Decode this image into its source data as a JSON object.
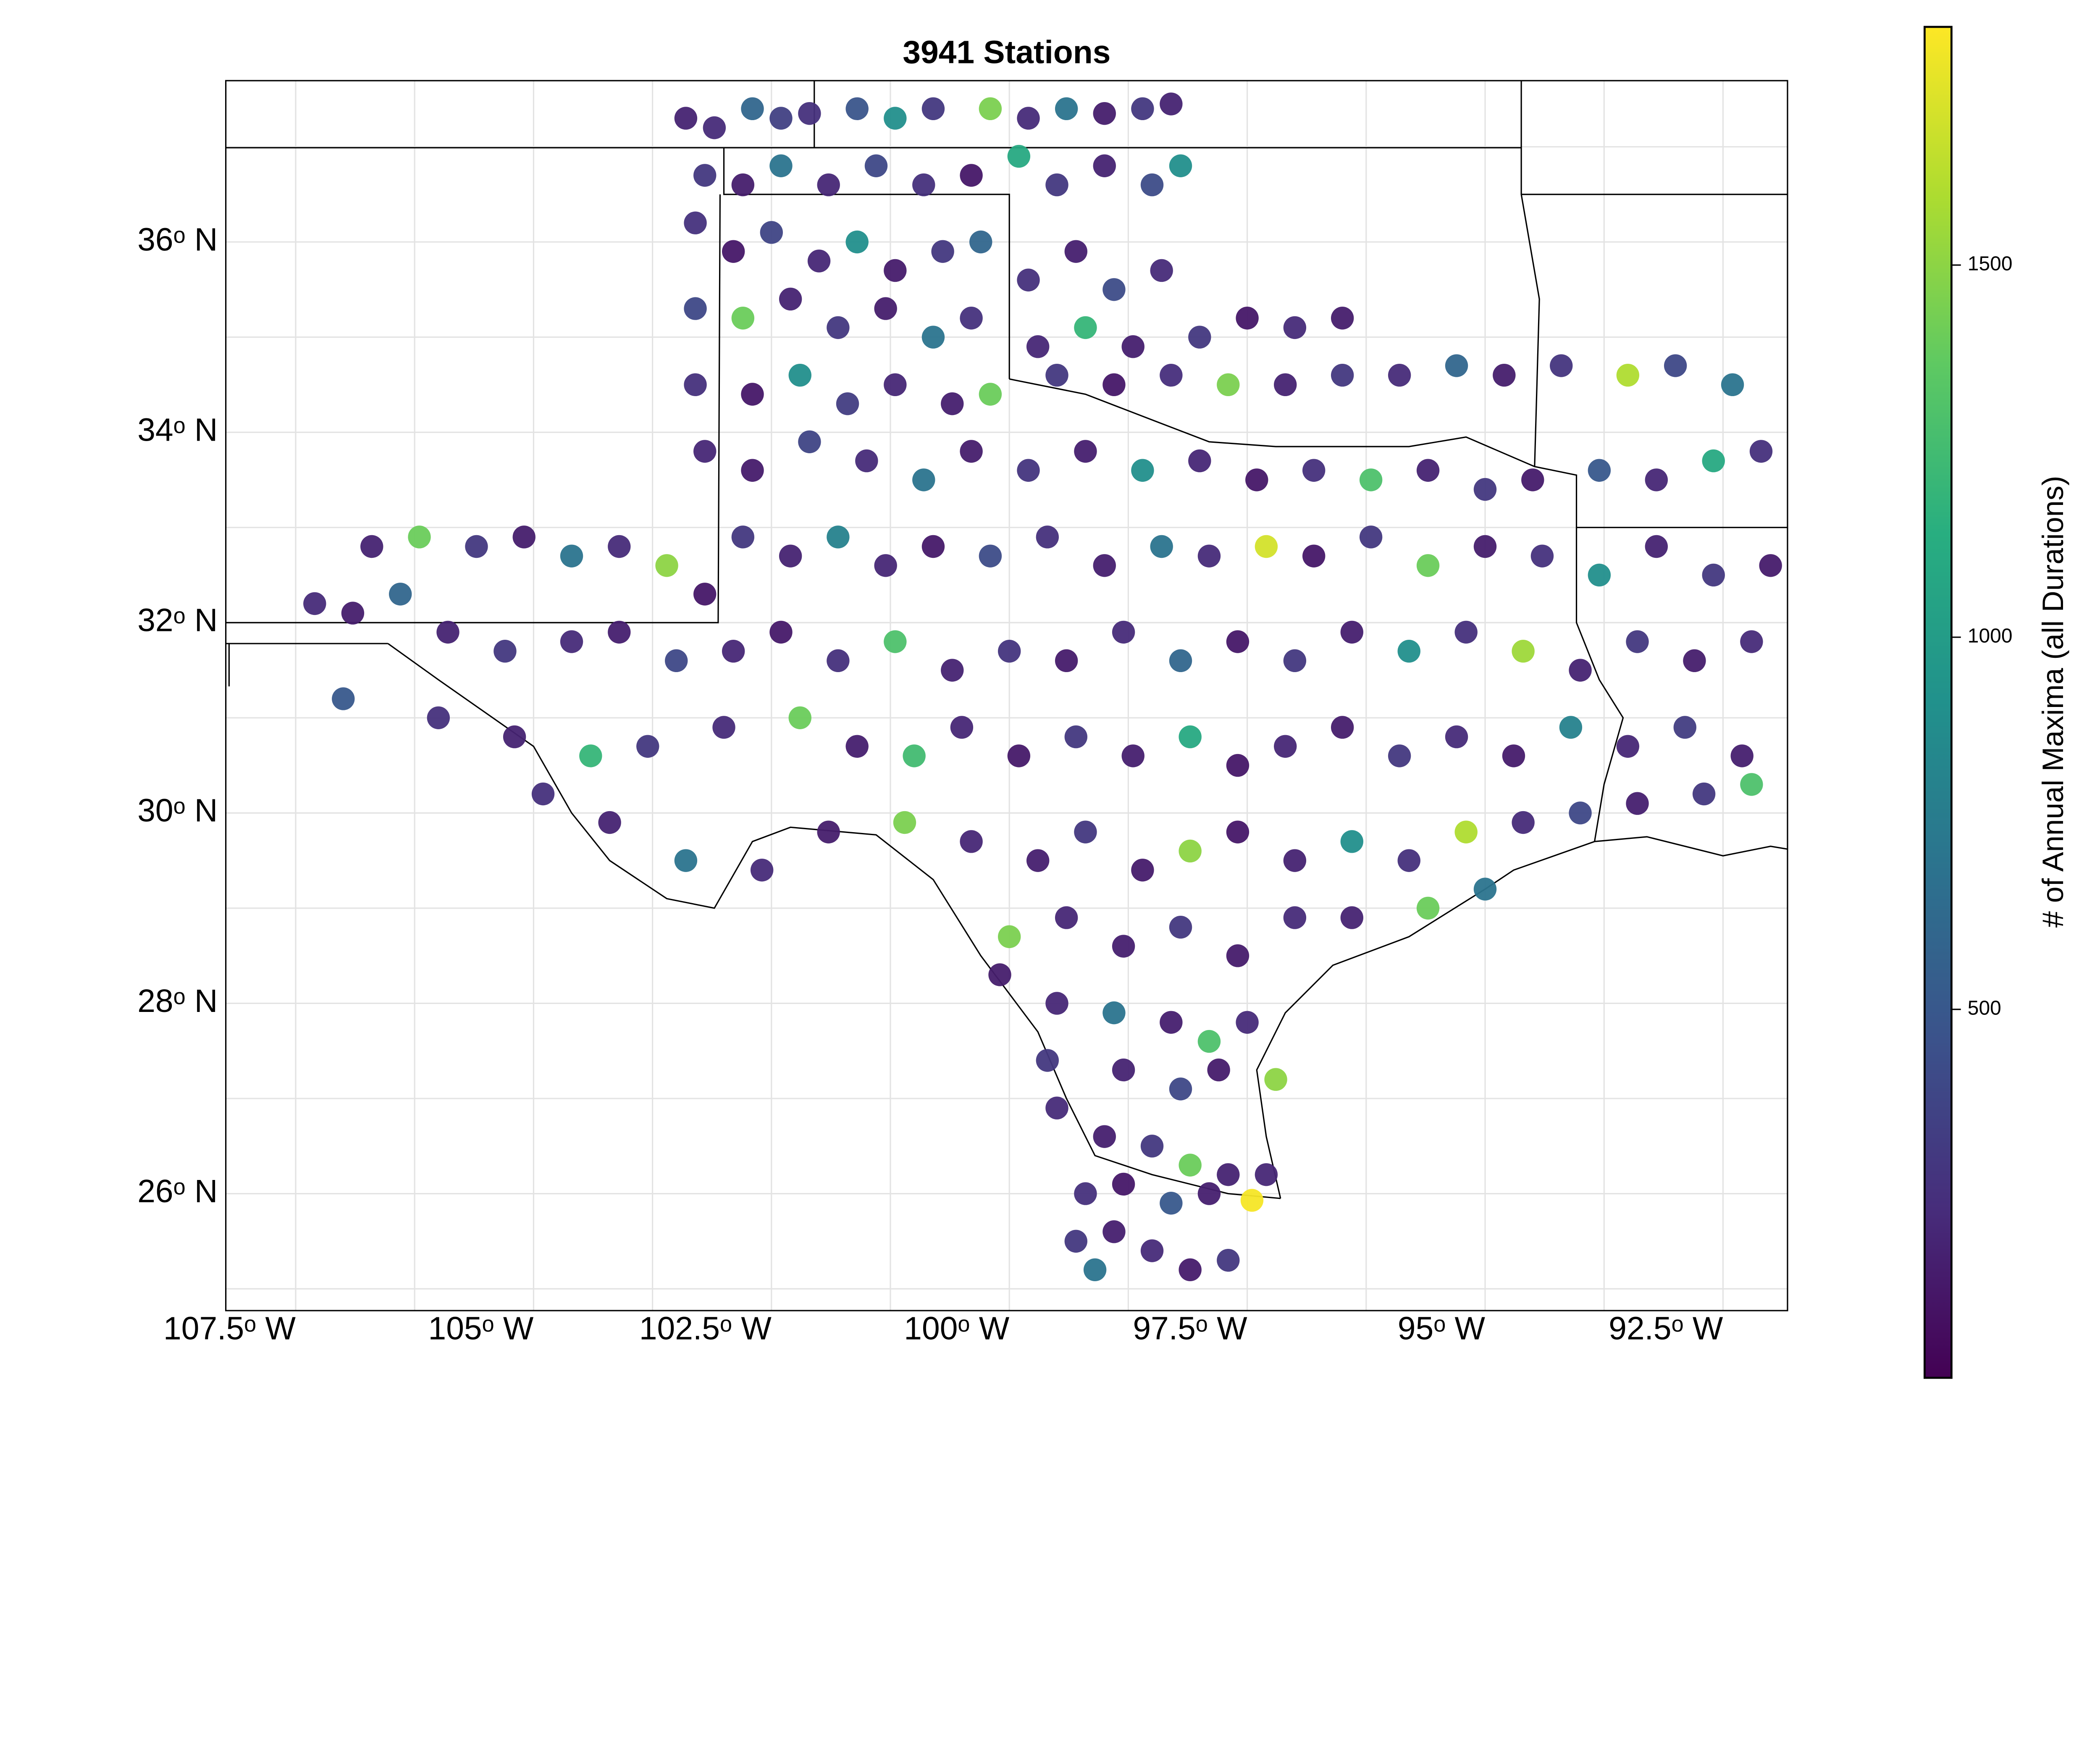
{
  "title": "3941 Stations",
  "colorbar": {
    "label": "# of Annual Maxima (all Durations)",
    "range": [
      5,
      1820
    ],
    "ticks": [
      {
        "value": 500,
        "label": "500"
      },
      {
        "value": 1000,
        "label": "1000"
      },
      {
        "value": 1500,
        "label": "1500"
      }
    ],
    "colormap": "viridis"
  },
  "axes": {
    "lon_range": [
      -108.23,
      -91.82
    ],
    "lat_range": [
      24.77,
      37.7
    ],
    "x_ticks": [
      {
        "value": -107.5,
        "label": "107.5ᵒ W"
      },
      {
        "value": -105,
        "label": "105ᵒ W"
      },
      {
        "value": -102.5,
        "label": "102.5ᵒ W"
      },
      {
        "value": -100,
        "label": "100ᵒ W"
      },
      {
        "value": -97.5,
        "label": "97.5ᵒ W"
      },
      {
        "value": -95,
        "label": "95ᵒ W"
      },
      {
        "value": -92.5,
        "label": "92.5ᵒ W"
      }
    ],
    "y_ticks": [
      {
        "value": 36,
        "label": "36ᵒ N"
      },
      {
        "value": 34,
        "label": "34ᵒ N"
      },
      {
        "value": 32,
        "label": "32ᵒ N"
      },
      {
        "value": 30,
        "label": "30ᵒ N"
      },
      {
        "value": 28,
        "label": "28ᵒ N"
      },
      {
        "value": 26,
        "label": "26ᵒ N"
      }
    ],
    "grid": true
  },
  "boundaries": [
    [
      [
        -108.23,
        36.99
      ],
      [
        -94.62,
        36.99
      ]
    ],
    [
      [
        -102.05,
        37.7
      ],
      [
        -102.05,
        36.99
      ]
    ],
    [
      [
        -94.62,
        37.7
      ],
      [
        -94.62,
        36.5
      ],
      [
        -94.43,
        35.4
      ],
      [
        -94.48,
        33.64
      ]
    ],
    [
      [
        -94.62,
        36.5
      ],
      [
        -91.82,
        36.5
      ]
    ],
    [
      [
        -94.04,
        33.0
      ],
      [
        -91.82,
        33.0
      ]
    ],
    [
      [
        -103.0,
        36.99
      ],
      [
        -103.0,
        36.5
      ],
      [
        -100.0,
        36.5
      ],
      [
        -100.0,
        34.56
      ]
    ],
    [
      [
        -100.0,
        34.56
      ],
      [
        -99.2,
        34.4
      ],
      [
        -98.5,
        34.13
      ],
      [
        -97.9,
        33.9
      ],
      [
        -97.2,
        33.85
      ],
      [
        -96.6,
        33.85
      ],
      [
        -95.8,
        33.85
      ],
      [
        -95.2,
        33.95
      ],
      [
        -94.48,
        33.64
      ],
      [
        -94.04,
        33.55
      ],
      [
        -94.04,
        33.0
      ]
    ],
    [
      [
        -103.04,
        36.5
      ],
      [
        -103.06,
        32.0
      ],
      [
        -108.23,
        32.0
      ]
    ],
    [
      [
        -108.23,
        31.78
      ],
      [
        -106.53,
        31.78
      ]
    ],
    [
      [
        -108.2,
        31.78
      ],
      [
        -108.2,
        31.33
      ]
    ],
    [
      [
        -106.53,
        31.78
      ],
      [
        -106.0,
        31.4
      ],
      [
        -105.0,
        30.7
      ],
      [
        -104.6,
        30.0
      ],
      [
        -104.2,
        29.5
      ],
      [
        -103.6,
        29.1
      ],
      [
        -103.1,
        29.0
      ],
      [
        -102.7,
        29.7
      ],
      [
        -102.3,
        29.85
      ],
      [
        -101.4,
        29.77
      ],
      [
        -100.8,
        29.3
      ],
      [
        -100.3,
        28.5
      ],
      [
        -99.7,
        27.7
      ],
      [
        -99.4,
        27.0
      ],
      [
        -99.1,
        26.4
      ],
      [
        -98.5,
        26.2
      ],
      [
        -97.7,
        26.0
      ],
      [
        -97.15,
        25.95
      ]
    ],
    [
      [
        -97.15,
        25.95
      ],
      [
        -97.3,
        26.6
      ],
      [
        -97.4,
        27.3
      ],
      [
        -97.1,
        27.9
      ],
      [
        -96.6,
        28.4
      ],
      [
        -95.8,
        28.7
      ],
      [
        -95.0,
        29.2
      ],
      [
        -94.7,
        29.4
      ],
      [
        -93.85,
        29.7
      ],
      [
        -93.3,
        29.75
      ],
      [
        -92.5,
        29.55
      ],
      [
        -92.0,
        29.65
      ],
      [
        -91.82,
        29.62
      ]
    ],
    [
      [
        -94.04,
        33.0
      ],
      [
        -94.04,
        32.0
      ],
      [
        -93.8,
        31.4
      ],
      [
        -93.55,
        31.0
      ],
      [
        -93.75,
        30.3
      ],
      [
        -93.85,
        29.7
      ]
    ]
  ],
  "chart_data": {
    "type": "scatter",
    "title": "3941 Stations",
    "colorbar_label": "# of Annual Maxima (all Durations)",
    "note_points": "representative subset of stations",
    "points": [
      [
        -103.4,
        37.3,
        180
      ],
      [
        -103.1,
        37.2,
        220
      ],
      [
        -102.7,
        37.4,
        600
      ],
      [
        -102.4,
        37.3,
        350
      ],
      [
        -102.1,
        37.35,
        250
      ],
      [
        -101.6,
        37.4,
        480
      ],
      [
        -101.2,
        37.3,
        900
      ],
      [
        -100.8,
        37.4,
        300
      ],
      [
        -100.2,
        37.4,
        1450
      ],
      [
        -99.8,
        37.3,
        220
      ],
      [
        -99.4,
        37.4,
        700
      ],
      [
        -99.0,
        37.35,
        150
      ],
      [
        -98.6,
        37.4,
        300
      ],
      [
        -98.3,
        37.45,
        180
      ],
      [
        -103.2,
        36.7,
        300
      ],
      [
        -102.8,
        36.6,
        150
      ],
      [
        -102.4,
        36.8,
        700
      ],
      [
        -101.9,
        36.6,
        200
      ],
      [
        -101.4,
        36.8,
        400
      ],
      [
        -100.9,
        36.6,
        250
      ],
      [
        -100.4,
        36.7,
        120
      ],
      [
        -99.9,
        36.9,
        1100
      ],
      [
        -99.5,
        36.6,
        300
      ],
      [
        -99.0,
        36.8,
        180
      ],
      [
        -98.5,
        36.6,
        420
      ],
      [
        -98.2,
        36.8,
        900
      ],
      [
        -103.3,
        36.2,
        260
      ],
      [
        -102.9,
        35.9,
        120
      ],
      [
        -102.5,
        36.1,
        380
      ],
      [
        -102.0,
        35.8,
        200
      ],
      [
        -101.6,
        36.0,
        900
      ],
      [
        -101.2,
        35.7,
        140
      ],
      [
        -100.7,
        35.9,
        300
      ],
      [
        -100.3,
        36.0,
        600
      ],
      [
        -99.8,
        35.6,
        250
      ],
      [
        -99.3,
        35.9,
        160
      ],
      [
        -98.9,
        35.5,
        420
      ],
      [
        -98.4,
        35.7,
        220
      ],
      [
        -103.3,
        35.3,
        400
      ],
      [
        -102.8,
        35.2,
        1400
      ],
      [
        -102.3,
        35.4,
        180
      ],
      [
        -101.8,
        35.1,
        300
      ],
      [
        -101.3,
        35.3,
        150
      ],
      [
        -100.8,
        35.0,
        700
      ],
      [
        -100.4,
        35.2,
        260
      ],
      [
        -99.7,
        34.9,
        200
      ],
      [
        -99.2,
        35.1,
        1200
      ],
      [
        -98.7,
        34.9,
        160
      ],
      [
        -98.0,
        35.0,
        300
      ],
      [
        -97.5,
        35.2,
        120
      ],
      [
        -97.0,
        35.1,
        220
      ],
      [
        -96.5,
        35.2,
        150
      ],
      [
        -103.3,
        34.5,
        250
      ],
      [
        -102.7,
        34.4,
        120
      ],
      [
        -102.2,
        34.6,
        900
      ],
      [
        -101.7,
        34.3,
        330
      ],
      [
        -101.2,
        34.5,
        200
      ],
      [
        -100.6,
        34.3,
        160
      ],
      [
        -100.2,
        34.4,
        1400
      ],
      [
        -99.5,
        34.6,
        300
      ],
      [
        -98.9,
        34.5,
        120
      ],
      [
        -98.3,
        34.6,
        240
      ],
      [
        -97.7,
        34.5,
        1450
      ],
      [
        -97.1,
        34.5,
        180
      ],
      [
        -96.5,
        34.6,
        300
      ],
      [
        -95.9,
        34.6,
        220
      ],
      [
        -95.3,
        34.7,
        600
      ],
      [
        -94.8,
        34.6,
        150
      ],
      [
        -94.2,
        34.7,
        280
      ],
      [
        -93.5,
        34.6,
        1600
      ],
      [
        -93.0,
        34.7,
        400
      ],
      [
        -92.4,
        34.5,
        700
      ],
      [
        -103.2,
        33.8,
        200
      ],
      [
        -102.7,
        33.6,
        140
      ],
      [
        -102.1,
        33.9,
        380
      ],
      [
        -101.5,
        33.7,
        220
      ],
      [
        -100.9,
        33.5,
        700
      ],
      [
        -100.4,
        33.8,
        150
      ],
      [
        -99.8,
        33.6,
        280
      ],
      [
        -99.2,
        33.8,
        160
      ],
      [
        -98.6,
        33.6,
        900
      ],
      [
        -98.0,
        33.7,
        200
      ],
      [
        -97.4,
        33.5,
        120
      ],
      [
        -96.8,
        33.6,
        250
      ],
      [
        -96.2,
        33.5,
        1300
      ],
      [
        -95.6,
        33.6,
        180
      ],
      [
        -95.0,
        33.4,
        300
      ],
      [
        -94.5,
        33.5,
        140
      ],
      [
        -93.8,
        33.6,
        500
      ],
      [
        -93.2,
        33.5,
        200
      ],
      [
        -92.6,
        33.7,
        1100
      ],
      [
        -92.1,
        33.8,
        250
      ],
      [
        -106.7,
        32.8,
        180
      ],
      [
        -106.2,
        32.9,
        1400
      ],
      [
        -105.6,
        32.8,
        300
      ],
      [
        -105.1,
        32.9,
        150
      ],
      [
        -104.6,
        32.7,
        700
      ],
      [
        -104.1,
        32.8,
        220
      ],
      [
        -103.6,
        32.6,
        1500
      ],
      [
        -103.2,
        32.3,
        120
      ],
      [
        -102.8,
        32.9,
        300
      ],
      [
        -102.3,
        32.7,
        180
      ],
      [
        -101.8,
        32.9,
        800
      ],
      [
        -101.3,
        32.6,
        200
      ],
      [
        -100.8,
        32.8,
        130
      ],
      [
        -100.2,
        32.7,
        420
      ],
      [
        -99.6,
        32.9,
        250
      ],
      [
        -99.0,
        32.6,
        160
      ],
      [
        -98.4,
        32.8,
        700
      ],
      [
        -97.9,
        32.7,
        220
      ],
      [
        -97.3,
        32.8,
        1700
      ],
      [
        -96.8,
        32.7,
        120
      ],
      [
        -96.2,
        32.9,
        300
      ],
      [
        -95.6,
        32.6,
        1400
      ],
      [
        -95.0,
        32.8,
        150
      ],
      [
        -94.4,
        32.7,
        260
      ],
      [
        -93.8,
        32.5,
        900
      ],
      [
        -93.2,
        32.8,
        180
      ],
      [
        -92.6,
        32.5,
        300
      ],
      [
        -92.0,
        32.6,
        140
      ],
      [
        -107.3,
        32.2,
        220
      ],
      [
        -106.9,
        32.1,
        150
      ],
      [
        -106.4,
        32.3,
        600
      ],
      [
        -105.9,
        31.9,
        180
      ],
      [
        -105.3,
        31.7,
        300
      ],
      [
        -104.6,
        31.8,
        220
      ],
      [
        -104.1,
        31.9,
        160
      ],
      [
        -103.5,
        31.6,
        400
      ],
      [
        -102.9,
        31.7,
        200
      ],
      [
        -102.4,
        31.9,
        130
      ],
      [
        -101.8,
        31.6,
        250
      ],
      [
        -101.2,
        31.8,
        1300
      ],
      [
        -100.6,
        31.5,
        180
      ],
      [
        -100.0,
        31.7,
        280
      ],
      [
        -99.4,
        31.6,
        140
      ],
      [
        -98.8,
        31.9,
        220
      ],
      [
        -98.2,
        31.6,
        600
      ],
      [
        -97.6,
        31.8,
        120
      ],
      [
        -97.0,
        31.6,
        300
      ],
      [
        -96.4,
        31.9,
        160
      ],
      [
        -95.8,
        31.7,
        900
      ],
      [
        -95.2,
        31.9,
        250
      ],
      [
        -94.6,
        31.7,
        1550
      ],
      [
        -94.0,
        31.5,
        180
      ],
      [
        -93.4,
        31.8,
        300
      ],
      [
        -92.8,
        31.6,
        150
      ],
      [
        -92.2,
        31.8,
        220
      ],
      [
        -107.0,
        31.2,
        500
      ],
      [
        -106.0,
        31.0,
        250
      ],
      [
        -105.2,
        30.8,
        180
      ],
      [
        -104.4,
        30.6,
        1200
      ],
      [
        -103.8,
        30.7,
        300
      ],
      [
        -103.0,
        30.9,
        220
      ],
      [
        -102.2,
        31.0,
        1400
      ],
      [
        -101.6,
        30.7,
        160
      ],
      [
        -101.0,
        30.6,
        1250
      ],
      [
        -100.5,
        30.9,
        200
      ],
      [
        -99.9,
        30.6,
        130
      ],
      [
        -99.3,
        30.8,
        300
      ],
      [
        -98.7,
        30.6,
        160
      ],
      [
        -98.1,
        30.8,
        1100
      ],
      [
        -97.6,
        30.5,
        120
      ],
      [
        -97.1,
        30.7,
        200
      ],
      [
        -96.5,
        30.9,
        150
      ],
      [
        -95.9,
        30.6,
        300
      ],
      [
        -95.3,
        30.8,
        220
      ],
      [
        -94.7,
        30.6,
        140
      ],
      [
        -94.1,
        30.9,
        800
      ],
      [
        -93.5,
        30.7,
        200
      ],
      [
        -92.9,
        30.9,
        330
      ],
      [
        -92.3,
        30.6,
        160
      ],
      [
        -104.9,
        30.2,
        250
      ],
      [
        -104.2,
        29.9,
        180
      ],
      [
        -103.4,
        29.5,
        700
      ],
      [
        -102.6,
        29.4,
        220
      ],
      [
        -101.9,
        29.8,
        150
      ],
      [
        -101.1,
        29.9,
        1450
      ],
      [
        -100.4,
        29.7,
        200
      ],
      [
        -99.7,
        29.5,
        160
      ],
      [
        -99.2,
        29.8,
        300
      ],
      [
        -98.6,
        29.4,
        140
      ],
      [
        -98.1,
        29.6,
        1500
      ],
      [
        -97.6,
        29.8,
        120
      ],
      [
        -97.0,
        29.5,
        180
      ],
      [
        -96.4,
        29.7,
        900
      ],
      [
        -95.8,
        29.5,
        250
      ],
      [
        -95.2,
        29.8,
        1600
      ],
      [
        -94.6,
        29.9,
        220
      ],
      [
        -94.0,
        30.0,
        400
      ],
      [
        -93.4,
        30.1,
        160
      ],
      [
        -92.7,
        30.2,
        300
      ],
      [
        -92.2,
        30.3,
        1300
      ],
      [
        -100.0,
        28.7,
        1450
      ],
      [
        -99.4,
        28.9,
        200
      ],
      [
        -98.8,
        28.6,
        160
      ],
      [
        -98.2,
        28.8,
        300
      ],
      [
        -97.6,
        28.5,
        140
      ],
      [
        -97.0,
        28.9,
        220
      ],
      [
        -96.4,
        28.9,
        180
      ],
      [
        -95.6,
        29.0,
        1400
      ],
      [
        -95.0,
        29.2,
        700
      ],
      [
        -100.1,
        28.3,
        150
      ],
      [
        -99.5,
        28.0,
        200
      ],
      [
        -98.9,
        27.9,
        700
      ],
      [
        -98.3,
        27.8,
        160
      ],
      [
        -97.9,
        27.6,
        1300
      ],
      [
        -97.5,
        27.8,
        220
      ],
      [
        -99.6,
        27.4,
        300
      ],
      [
        -98.8,
        27.3,
        180
      ],
      [
        -98.2,
        27.1,
        400
      ],
      [
        -97.8,
        27.3,
        140
      ],
      [
        -97.2,
        27.2,
        1500
      ],
      [
        -99.5,
        26.9,
        220
      ],
      [
        -99.0,
        26.6,
        160
      ],
      [
        -98.5,
        26.5,
        300
      ],
      [
        -98.1,
        26.3,
        1400
      ],
      [
        -97.7,
        26.2,
        180
      ],
      [
        -97.3,
        26.2,
        200
      ],
      [
        -99.2,
        26.0,
        250
      ],
      [
        -98.8,
        26.1,
        120
      ],
      [
        -98.3,
        25.9,
        500
      ],
      [
        -97.9,
        26.0,
        160
      ],
      [
        -97.45,
        25.93,
        1800
      ],
      [
        -99.3,
        25.5,
        300
      ],
      [
        -98.9,
        25.6,
        160
      ],
      [
        -98.5,
        25.4,
        220
      ],
      [
        -98.1,
        25.2,
        140
      ],
      [
        -99.1,
        25.2,
        700
      ],
      [
        -97.7,
        25.3,
        300
      ]
    ]
  }
}
